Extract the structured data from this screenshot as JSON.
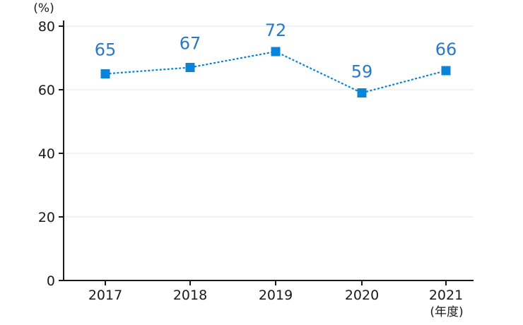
{
  "chart_data": {
    "type": "line",
    "categories": [
      "2017",
      "2018",
      "2019",
      "2020",
      "2021"
    ],
    "series": [
      {
        "name": "rate",
        "values": [
          65,
          67,
          72,
          59,
          66
        ]
      }
    ],
    "data_labels": [
      "65",
      "67",
      "72",
      "59",
      "66"
    ],
    "y_ticks": [
      "0",
      "20",
      "40",
      "60",
      "80"
    ],
    "ylim": [
      0,
      80
    ],
    "ylabel": "(%)",
    "xlabel": "(年度)",
    "grid": true,
    "line_style": "dotted",
    "marker": "square"
  },
  "colors": {
    "series": "#0a84d8",
    "label": "#2a79c2",
    "grid": "#e6e6e6",
    "axis": "#1a1a1a"
  }
}
